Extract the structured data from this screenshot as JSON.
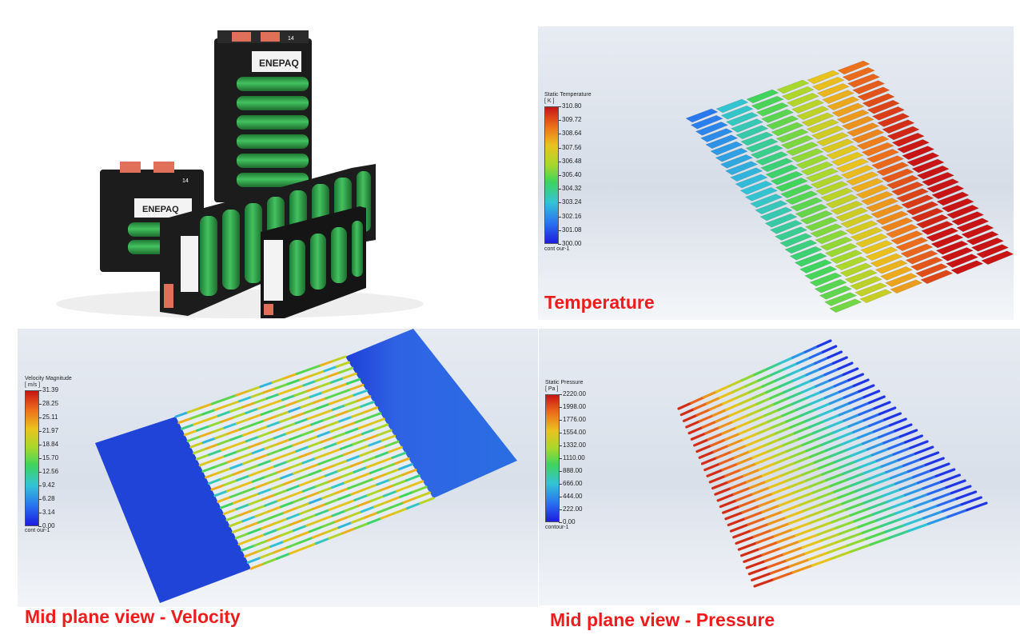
{
  "panels": {
    "battery": {
      "pack_label": "14",
      "brand_text": "ENEPAQ"
    },
    "temperature": {
      "caption": "Temperature",
      "legend": {
        "title_line1": "Static Temperature",
        "title_line2": "[ K ]",
        "ticks": [
          "310.80",
          "309.72",
          "308.64",
          "307.56",
          "306.48",
          "305.40",
          "304.32",
          "303.24",
          "302.16",
          "301.08",
          "300.00"
        ],
        "footer": "cont our-1"
      }
    },
    "velocity": {
      "caption": "Mid plane view - Velocity",
      "legend": {
        "title_line1": "Velocity Magnitude",
        "title_line2": "[ m/s ]",
        "ticks": [
          "31.39",
          "28.25",
          "25.11",
          "21.97",
          "18.84",
          "15.70",
          "12.56",
          "9.42",
          "6.28",
          "3.14",
          "0.00"
        ],
        "footer": "cont our-1"
      }
    },
    "pressure": {
      "caption": "Mid plane view - Pressure",
      "legend": {
        "title_line1": "Static Pressure",
        "title_line2": "[ Pa ]",
        "ticks": [
          "2220.00",
          "1998.00",
          "1776.00",
          "1554.00",
          "1332.00",
          "1110.00",
          "888.00",
          "666.00",
          "444.00",
          "222.00",
          "0.00"
        ],
        "footer": "contour-1"
      }
    }
  },
  "colors": {
    "caption_red": "#ee1c1c",
    "cell_green": "#2fa34a",
    "holder_black": "#1c1c1c",
    "terminal_orange": "#e0705a",
    "colormap": [
      "#1c1ce0",
      "#2a74f0",
      "#33c3d6",
      "#3fd45c",
      "#a9d82c",
      "#eac21e",
      "#ec6e1c",
      "#c81414"
    ]
  }
}
